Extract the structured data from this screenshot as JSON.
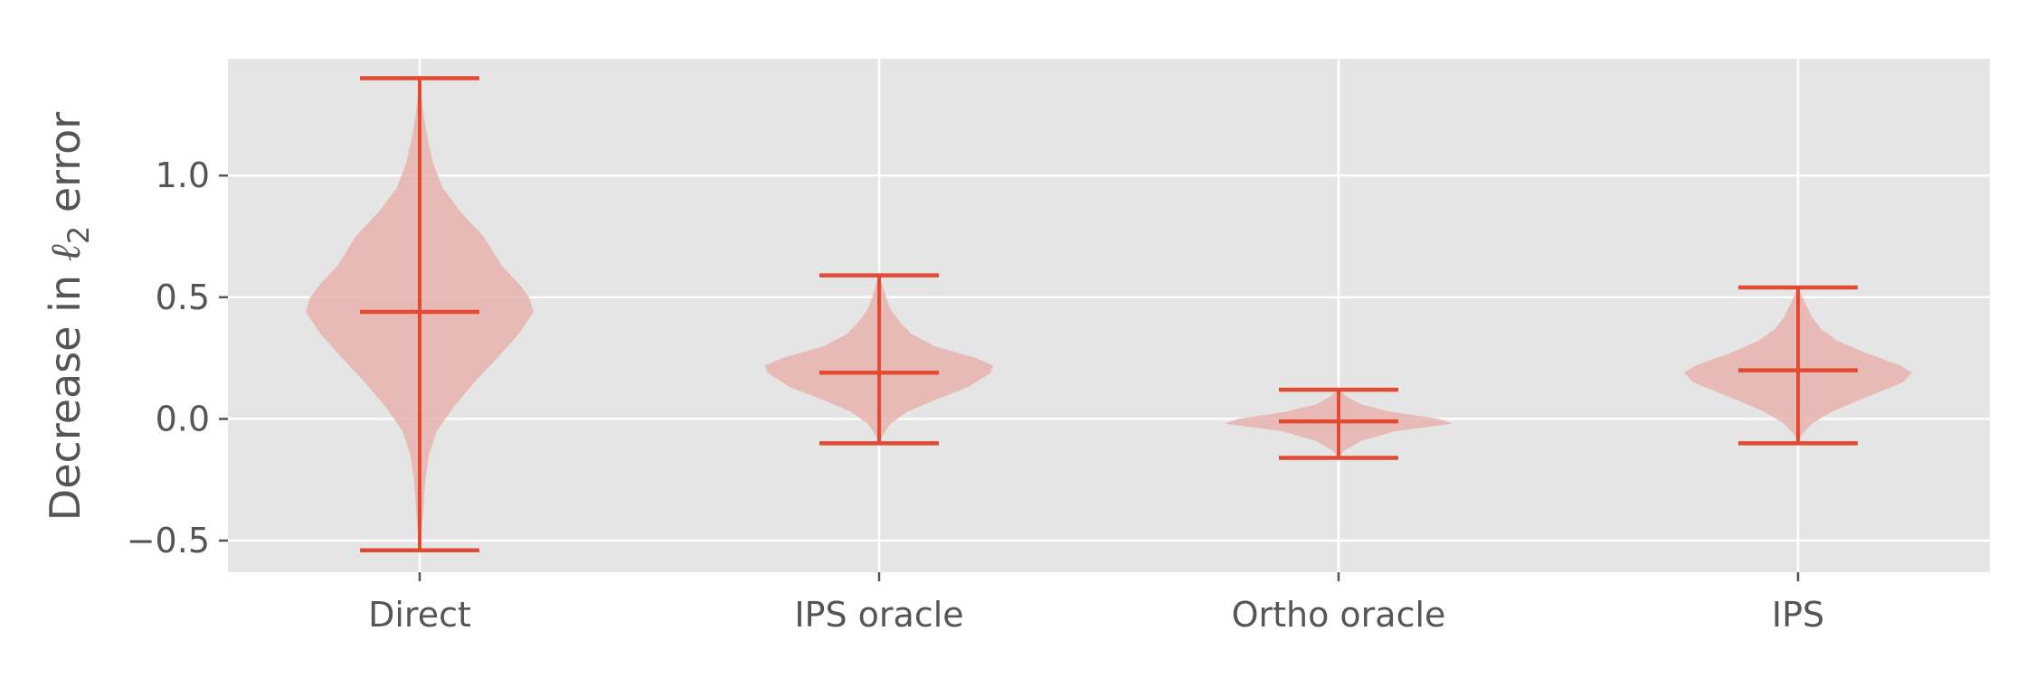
{
  "chart_data": {
    "type": "violin",
    "title": "",
    "xlabel": "",
    "ylabel": {
      "prefix": "Decrease in ",
      "symbol": "ℓ",
      "subscript": "2",
      "suffix": " error"
    },
    "categories": [
      "Direct",
      "IPS oracle",
      "Ortho oracle",
      "IPS"
    ],
    "ylim": [
      -0.63,
      1.48
    ],
    "yticks": [
      -0.5,
      0.0,
      0.5,
      1.0
    ],
    "ytick_labels": [
      "−0.5",
      "0.0",
      "0.5",
      "1.0"
    ],
    "grid": true,
    "colors": {
      "background": "#e5e5e5",
      "grid": "#ffffff",
      "stroke": "#e24a33",
      "fill": "#e8b3ae",
      "text": "#555555"
    },
    "violins": [
      {
        "name": "Direct",
        "min": -0.54,
        "max": 1.4,
        "mean": 0.44,
        "profile": [
          [
            -0.54,
            0.0
          ],
          [
            -0.45,
            0.02
          ],
          [
            -0.35,
            0.035
          ],
          [
            -0.25,
            0.05
          ],
          [
            -0.15,
            0.08
          ],
          [
            -0.05,
            0.15
          ],
          [
            0.05,
            0.3
          ],
          [
            0.15,
            0.48
          ],
          [
            0.25,
            0.68
          ],
          [
            0.35,
            0.87
          ],
          [
            0.44,
            1.0
          ],
          [
            0.5,
            0.96
          ],
          [
            0.55,
            0.88
          ],
          [
            0.63,
            0.72
          ],
          [
            0.75,
            0.56
          ],
          [
            0.85,
            0.36
          ],
          [
            0.95,
            0.2
          ],
          [
            1.05,
            0.12
          ],
          [
            1.15,
            0.07
          ],
          [
            1.25,
            0.035
          ],
          [
            1.33,
            0.015
          ],
          [
            1.4,
            0.0
          ]
        ]
      },
      {
        "name": "IPS oracle",
        "min": -0.1,
        "max": 0.59,
        "mean": 0.19,
        "profile": [
          [
            -0.1,
            0.0
          ],
          [
            -0.06,
            0.04
          ],
          [
            -0.02,
            0.1
          ],
          [
            0.03,
            0.25
          ],
          [
            0.08,
            0.5
          ],
          [
            0.13,
            0.78
          ],
          [
            0.19,
            0.98
          ],
          [
            0.22,
            1.0
          ],
          [
            0.25,
            0.85
          ],
          [
            0.3,
            0.48
          ],
          [
            0.35,
            0.28
          ],
          [
            0.4,
            0.18
          ],
          [
            0.45,
            0.1
          ],
          [
            0.5,
            0.06
          ],
          [
            0.55,
            0.03
          ],
          [
            0.59,
            0.0
          ]
        ]
      },
      {
        "name": "Ortho oracle",
        "min": -0.16,
        "max": 0.12,
        "mean": -0.01,
        "profile": [
          [
            -0.16,
            0.0
          ],
          [
            -0.13,
            0.05
          ],
          [
            -0.09,
            0.2
          ],
          [
            -0.05,
            0.5
          ],
          [
            -0.02,
            1.0
          ],
          [
            0.0,
            0.88
          ],
          [
            0.03,
            0.45
          ],
          [
            0.06,
            0.2
          ],
          [
            0.09,
            0.08
          ],
          [
            0.12,
            0.0
          ]
        ]
      },
      {
        "name": "IPS",
        "min": -0.1,
        "max": 0.54,
        "mean": 0.2,
        "profile": [
          [
            -0.1,
            0.0
          ],
          [
            -0.06,
            0.04
          ],
          [
            -0.02,
            0.12
          ],
          [
            0.03,
            0.3
          ],
          [
            0.09,
            0.6
          ],
          [
            0.15,
            0.92
          ],
          [
            0.19,
            1.0
          ],
          [
            0.22,
            0.9
          ],
          [
            0.27,
            0.6
          ],
          [
            0.32,
            0.35
          ],
          [
            0.37,
            0.2
          ],
          [
            0.42,
            0.12
          ],
          [
            0.47,
            0.07
          ],
          [
            0.51,
            0.03
          ],
          [
            0.54,
            0.0
          ]
        ]
      }
    ]
  }
}
